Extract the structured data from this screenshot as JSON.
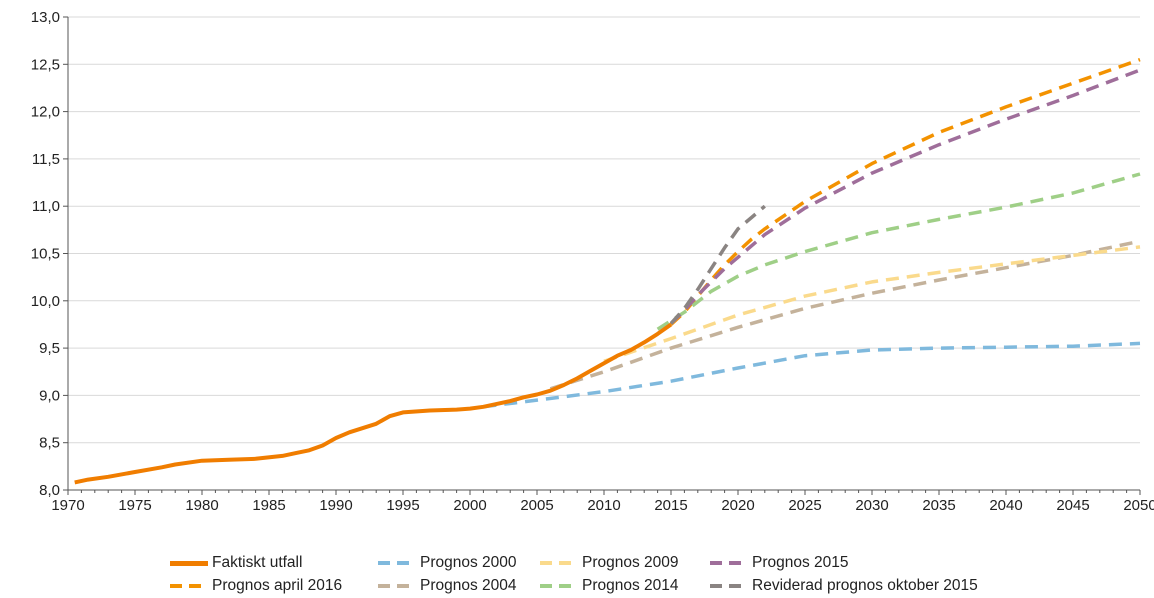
{
  "chart_data": {
    "type": "line",
    "title": "",
    "xlabel": "",
    "ylabel": "",
    "xlim": [
      1970,
      2050
    ],
    "ylim": [
      8.0,
      13.0
    ],
    "x_ticks": [
      "1970",
      "1975",
      "1980",
      "1985",
      "1990",
      "1995",
      "2000",
      "2005",
      "2010",
      "2015",
      "2020",
      "2025",
      "2030",
      "2035",
      "2040",
      "2045",
      "2050"
    ],
    "y_ticks": [
      "8,0",
      "8,5",
      "9,0",
      "9,5",
      "10,0",
      "10,5",
      "11,0",
      "11,5",
      "12,0",
      "12,5",
      "13,0"
    ],
    "grid": "horizontal",
    "legend_position": "bottom",
    "series": [
      {
        "name": "Faktiskt utfall",
        "color": "#F07D00",
        "style": "solid",
        "points": [
          [
            1970.5,
            8.08
          ],
          [
            1971.5,
            8.11
          ],
          [
            1973,
            8.14
          ],
          [
            1975,
            8.19
          ],
          [
            1977,
            8.24
          ],
          [
            1978,
            8.27
          ],
          [
            1980,
            8.31
          ],
          [
            1982,
            8.32
          ],
          [
            1984,
            8.33
          ],
          [
            1986,
            8.36
          ],
          [
            1987,
            8.39
          ],
          [
            1988,
            8.42
          ],
          [
            1989,
            8.47
          ],
          [
            1990,
            8.55
          ],
          [
            1991,
            8.61
          ],
          [
            1993,
            8.7
          ],
          [
            1994,
            8.78
          ],
          [
            1995,
            8.82
          ],
          [
            1997,
            8.84
          ],
          [
            1999,
            8.85
          ],
          [
            2000,
            8.86
          ],
          [
            2001,
            8.88
          ],
          [
            2002,
            8.91
          ],
          [
            2003,
            8.94
          ],
          [
            2004,
            8.98
          ],
          [
            2005,
            9.01
          ],
          [
            2006,
            9.05
          ],
          [
            2007,
            9.11
          ],
          [
            2008,
            9.18
          ],
          [
            2009,
            9.26
          ],
          [
            2010,
            9.34
          ],
          [
            2011,
            9.42
          ],
          [
            2012,
            9.48
          ],
          [
            2013,
            9.56
          ],
          [
            2014,
            9.65
          ],
          [
            2015,
            9.75
          ]
        ]
      },
      {
        "name": "Prognos april 2016",
        "color": "#F39200",
        "style": "dashed",
        "points": [
          [
            2015,
            9.75
          ],
          [
            2016,
            9.88
          ],
          [
            2017,
            10.05
          ],
          [
            2018,
            10.22
          ],
          [
            2019,
            10.38
          ],
          [
            2020,
            10.52
          ],
          [
            2021,
            10.65
          ],
          [
            2022,
            10.76
          ],
          [
            2025,
            11.05
          ],
          [
            2030,
            11.45
          ],
          [
            2035,
            11.78
          ],
          [
            2040,
            12.05
          ],
          [
            2045,
            12.3
          ],
          [
            2050,
            12.55
          ]
        ]
      },
      {
        "name": "Prognos 2000",
        "color": "#7FB9DD",
        "style": "dashed",
        "points": [
          [
            2001,
            8.88
          ],
          [
            2005,
            8.95
          ],
          [
            2010,
            9.04
          ],
          [
            2015,
            9.15
          ],
          [
            2020,
            9.29
          ],
          [
            2025,
            9.42
          ],
          [
            2030,
            9.48
          ],
          [
            2035,
            9.5
          ],
          [
            2040,
            9.51
          ],
          [
            2045,
            9.52
          ],
          [
            2050,
            9.55
          ]
        ]
      },
      {
        "name": "Prognos 2004",
        "color": "#C4B29B",
        "style": "dashed",
        "points": [
          [
            2006,
            9.07
          ],
          [
            2010,
            9.25
          ],
          [
            2015,
            9.5
          ],
          [
            2020,
            9.72
          ],
          [
            2025,
            9.92
          ],
          [
            2030,
            10.08
          ],
          [
            2035,
            10.22
          ],
          [
            2040,
            10.35
          ],
          [
            2045,
            10.48
          ],
          [
            2050,
            10.63
          ]
        ]
      },
      {
        "name": "Prognos 2009",
        "color": "#FADA8C",
        "style": "dashed",
        "points": [
          [
            2010,
            9.36
          ],
          [
            2015,
            9.6
          ],
          [
            2020,
            9.85
          ],
          [
            2025,
            10.05
          ],
          [
            2030,
            10.2
          ],
          [
            2035,
            10.3
          ],
          [
            2040,
            10.39
          ],
          [
            2045,
            10.48
          ],
          [
            2050,
            10.57
          ]
        ]
      },
      {
        "name": "Prognos 2014",
        "color": "#9FCF87",
        "style": "dashed",
        "points": [
          [
            2014,
            9.7
          ],
          [
            2016,
            9.88
          ],
          [
            2018,
            10.1
          ],
          [
            2020,
            10.26
          ],
          [
            2022,
            10.38
          ],
          [
            2025,
            10.52
          ],
          [
            2030,
            10.72
          ],
          [
            2035,
            10.86
          ],
          [
            2040,
            10.99
          ],
          [
            2045,
            11.14
          ],
          [
            2050,
            11.34
          ]
        ]
      },
      {
        "name": "Prognos 2015",
        "color": "#9F6E9A",
        "style": "dashed",
        "points": [
          [
            2015,
            9.76
          ],
          [
            2016,
            9.9
          ],
          [
            2017,
            10.06
          ],
          [
            2018,
            10.2
          ],
          [
            2019,
            10.34
          ],
          [
            2020,
            10.46
          ],
          [
            2022,
            10.7
          ],
          [
            2025,
            10.98
          ],
          [
            2030,
            11.35
          ],
          [
            2035,
            11.65
          ],
          [
            2040,
            11.92
          ],
          [
            2045,
            12.17
          ],
          [
            2050,
            12.44
          ]
        ]
      },
      {
        "name": "Reviderad prognos oktober 2015",
        "color": "#8A8482",
        "style": "dashed",
        "points": [
          [
            2015,
            9.76
          ],
          [
            2016,
            9.92
          ],
          [
            2017,
            10.12
          ],
          [
            2018,
            10.34
          ],
          [
            2019,
            10.56
          ],
          [
            2020,
            10.76
          ],
          [
            2021,
            10.88
          ],
          [
            2022,
            11.0
          ]
        ]
      }
    ],
    "legend_order": [
      "Faktiskt utfall",
      "Prognos 2000",
      "Prognos 2009",
      "Prognos 2015",
      "Prognos april 2016",
      "Prognos 2004",
      "Prognos 2014",
      "Reviderad prognos oktober 2015"
    ]
  }
}
